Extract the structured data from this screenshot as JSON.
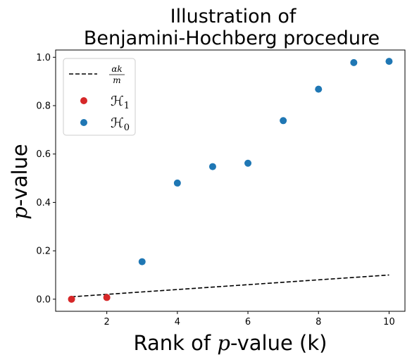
{
  "chart_data": {
    "type": "scatter",
    "title_line1": "Illustration of",
    "title_line2": "Benjamini-Hochberg procedure",
    "xlabel_prefix": "Rank of ",
    "xlabel_var": "p",
    "xlabel_suffix": "-value (k)",
    "ylabel_var": "p",
    "ylabel_suffix": "-value",
    "xlim": [
      0.55,
      10.45
    ],
    "ylim": [
      -0.05,
      1.03
    ],
    "xticks": [
      2,
      4,
      6,
      8,
      10
    ],
    "yticks": [
      0.0,
      0.2,
      0.4,
      0.6,
      0.8,
      1.0
    ],
    "xtick_labels": [
      "2",
      "4",
      "6",
      "8",
      "10"
    ],
    "ytick_labels": [
      "0.0",
      "0.2",
      "0.4",
      "0.6",
      "0.8",
      "1.0"
    ],
    "grid": false,
    "legend_placement": "top-left",
    "threshold_line": {
      "legend_num": "αk",
      "legend_den": "m",
      "color": "#000000",
      "style": "dashed",
      "x": [
        1,
        10
      ],
      "y": [
        0.01,
        0.1
      ]
    },
    "series": [
      {
        "legend_symbol": "ℋ",
        "legend_subscript": "1",
        "color": "#d62728",
        "points": [
          {
            "x": 1,
            "y": 0.0
          },
          {
            "x": 2,
            "y": 0.007
          }
        ]
      },
      {
        "legend_symbol": "ℋ",
        "legend_subscript": "0",
        "color": "#1f77b4",
        "points": [
          {
            "x": 3,
            "y": 0.155
          },
          {
            "x": 4,
            "y": 0.48
          },
          {
            "x": 5,
            "y": 0.548
          },
          {
            "x": 6,
            "y": 0.562
          },
          {
            "x": 7,
            "y": 0.738
          },
          {
            "x": 8,
            "y": 0.868
          },
          {
            "x": 9,
            "y": 0.978
          },
          {
            "x": 10,
            "y": 0.983
          }
        ]
      }
    ]
  }
}
